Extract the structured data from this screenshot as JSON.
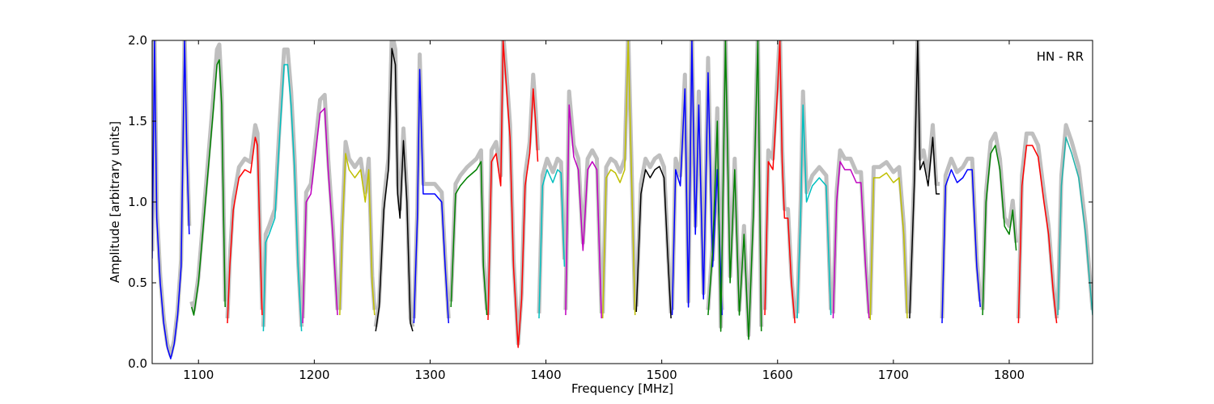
{
  "chart_data": {
    "type": "line",
    "xlabel": "Frequency [MHz]",
    "ylabel": "Amplitude [arbitrary units]",
    "annotation": "HN - RR",
    "xlim": [
      1060,
      1872
    ],
    "ylim": [
      0.0,
      2.0
    ],
    "x_ticks": [
      1100,
      1200,
      1300,
      1400,
      1500,
      1600,
      1700,
      1800
    ],
    "y_ticks": [
      0.0,
      0.5,
      1.0,
      1.5,
      2.0
    ],
    "x_tick_labels": [
      "1100",
      "1200",
      "1300",
      "1400",
      "1500",
      "1600",
      "1700",
      "1800"
    ],
    "y_tick_labels": [
      "0.0",
      "0.5",
      "1.0",
      "1.5",
      "2.0"
    ],
    "grid": false,
    "background_series": {
      "color": "#bfbfbf"
    },
    "series": [
      {
        "color": "#0000ff",
        "x": [
          1060,
          1062,
          1064,
          1067,
          1070,
          1073,
          1076,
          1079,
          1082,
          1085,
          1088,
          1090,
          1092
        ],
        "y": [
          0.65,
          2.0,
          0.9,
          0.5,
          0.25,
          0.1,
          0.03,
          0.12,
          0.3,
          0.6,
          2.0,
          1.3,
          0.8
        ]
      },
      {
        "color": "#008000",
        "x": [
          1094,
          1096,
          1100,
          1106,
          1112,
          1116,
          1118,
          1120,
          1123
        ],
        "y": [
          0.35,
          0.3,
          0.5,
          1.0,
          1.5,
          1.85,
          1.88,
          1.6,
          0.35
        ]
      },
      {
        "color": "#ff0000",
        "x": [
          1125,
          1127,
          1130,
          1135,
          1140,
          1145,
          1149,
          1151,
          1153,
          1155
        ],
        "y": [
          0.25,
          0.6,
          0.95,
          1.15,
          1.2,
          1.18,
          1.4,
          1.35,
          0.8,
          0.3
        ]
      },
      {
        "color": "#00bfbf",
        "x": [
          1156,
          1158,
          1161,
          1166,
          1170,
          1174,
          1177,
          1180,
          1183,
          1186,
          1189
        ],
        "y": [
          0.2,
          0.75,
          0.8,
          0.9,
          1.4,
          1.85,
          1.85,
          1.6,
          1.2,
          0.6,
          0.2
        ]
      },
      {
        "color": "#bf00bf",
        "x": [
          1190,
          1193,
          1197,
          1201,
          1205,
          1209,
          1212,
          1216,
          1220
        ],
        "y": [
          0.25,
          1.0,
          1.05,
          1.3,
          1.55,
          1.58,
          1.2,
          0.8,
          0.3
        ]
      },
      {
        "color": "#bfbf00",
        "x": [
          1222,
          1224,
          1227,
          1230,
          1235,
          1240,
          1244,
          1247,
          1250,
          1252
        ],
        "y": [
          0.3,
          0.8,
          1.3,
          1.2,
          1.15,
          1.2,
          1.0,
          1.2,
          0.5,
          0.3
        ]
      },
      {
        "color": "#000000",
        "x": [
          1253,
          1256,
          1260,
          1264,
          1267,
          1270,
          1272,
          1274,
          1277,
          1280,
          1283,
          1285
        ],
        "y": [
          0.2,
          0.35,
          0.95,
          1.2,
          1.95,
          1.85,
          1.05,
          0.9,
          1.38,
          1.0,
          0.25,
          0.2
        ]
      },
      {
        "color": "#0000ff",
        "x": [
          1286,
          1289,
          1291,
          1294,
          1298,
          1304,
          1310,
          1313,
          1316
        ],
        "y": [
          0.25,
          0.9,
          1.82,
          1.05,
          1.05,
          1.05,
          1.0,
          0.6,
          0.25
        ]
      },
      {
        "color": "#008000",
        "x": [
          1318,
          1322,
          1326,
          1332,
          1340,
          1344,
          1346,
          1349
        ],
        "y": [
          0.35,
          1.05,
          1.1,
          1.15,
          1.2,
          1.25,
          0.6,
          0.3
        ]
      },
      {
        "color": "#ff0000",
        "x": [
          1350,
          1353,
          1357,
          1361,
          1363,
          1366,
          1369,
          1372,
          1376,
          1379,
          1382,
          1386,
          1389,
          1391,
          1393
        ],
        "y": [
          0.27,
          1.25,
          1.3,
          1.1,
          2.0,
          1.7,
          1.4,
          0.6,
          0.1,
          0.4,
          1.1,
          1.3,
          1.7,
          1.5,
          1.25
        ]
      },
      {
        "color": "#00bfbf",
        "x": [
          1394,
          1397,
          1401,
          1406,
          1410,
          1413,
          1416
        ],
        "y": [
          0.28,
          1.1,
          1.2,
          1.12,
          1.2,
          1.18,
          0.6
        ]
      },
      {
        "color": "#bf00bf",
        "x": [
          1417,
          1420,
          1424,
          1428,
          1432,
          1436,
          1440,
          1444,
          1448
        ],
        "y": [
          0.3,
          1.6,
          1.28,
          1.2,
          0.7,
          1.2,
          1.25,
          1.2,
          0.28
        ]
      },
      {
        "color": "#bfbf00",
        "x": [
          1449,
          1452,
          1456,
          1460,
          1464,
          1468,
          1471,
          1474,
          1477
        ],
        "y": [
          0.28,
          1.15,
          1.2,
          1.18,
          1.12,
          1.2,
          2.0,
          1.15,
          0.3
        ]
      },
      {
        "color": "#000000",
        "x": [
          1478,
          1482,
          1486,
          1490,
          1494,
          1498,
          1502,
          1505,
          1508
        ],
        "y": [
          0.32,
          1.05,
          1.2,
          1.15,
          1.2,
          1.22,
          1.15,
          0.7,
          0.28
        ]
      },
      {
        "color": "#0000ff",
        "x": [
          1509,
          1512,
          1516,
          1520,
          1523,
          1526,
          1529,
          1532,
          1536,
          1540,
          1544,
          1548,
          1552
        ],
        "y": [
          0.3,
          1.2,
          1.1,
          1.7,
          0.35,
          2.0,
          0.8,
          1.6,
          0.4,
          1.8,
          0.6,
          1.2,
          0.3
        ]
      },
      {
        "color": "#008000",
        "x": [
          1540,
          1544,
          1548,
          1551,
          1555,
          1559,
          1563,
          1567,
          1571,
          1575,
          1579,
          1583,
          1586
        ],
        "y": [
          0.3,
          0.7,
          1.5,
          0.2,
          2.0,
          0.5,
          1.2,
          0.3,
          0.8,
          0.15,
          0.9,
          2.0,
          0.2
        ]
      },
      {
        "color": "#ff0000",
        "x": [
          1589,
          1592,
          1596,
          1600,
          1602,
          1604,
          1606,
          1609,
          1612,
          1615
        ],
        "y": [
          0.3,
          1.25,
          1.2,
          1.7,
          2.0,
          1.25,
          0.9,
          0.9,
          0.5,
          0.25
        ]
      },
      {
        "color": "#00bfbf",
        "x": [
          1617,
          1620,
          1622,
          1625,
          1630,
          1636,
          1642,
          1646
        ],
        "y": [
          0.28,
          0.95,
          1.6,
          1.0,
          1.1,
          1.15,
          1.1,
          0.3
        ]
      },
      {
        "color": "#bf00bf",
        "x": [
          1648,
          1651,
          1654,
          1658,
          1663,
          1668,
          1672,
          1676,
          1679
        ],
        "y": [
          0.28,
          1.0,
          1.25,
          1.2,
          1.2,
          1.12,
          1.12,
          0.6,
          0.28
        ]
      },
      {
        "color": "#bfbf00",
        "x": [
          1680,
          1683,
          1688,
          1694,
          1700,
          1705,
          1709,
          1712
        ],
        "y": [
          0.27,
          1.15,
          1.15,
          1.18,
          1.12,
          1.15,
          0.8,
          0.28
        ]
      },
      {
        "color": "#000000",
        "x": [
          1714,
          1718,
          1721,
          1723,
          1726,
          1730,
          1734,
          1737,
          1740
        ],
        "y": [
          0.28,
          1.1,
          2.0,
          1.2,
          1.25,
          1.1,
          1.4,
          1.05,
          1.05
        ]
      },
      {
        "color": "#0000ff",
        "x": [
          1742,
          1745,
          1750,
          1755,
          1760,
          1764,
          1768,
          1772,
          1775
        ],
        "y": [
          0.25,
          1.1,
          1.2,
          1.12,
          1.15,
          1.2,
          1.2,
          0.6,
          0.35
        ]
      },
      {
        "color": "#008000",
        "x": [
          1777,
          1780,
          1784,
          1788,
          1792,
          1796,
          1800,
          1803,
          1806
        ],
        "y": [
          0.3,
          1.0,
          1.3,
          1.35,
          1.2,
          0.85,
          0.8,
          0.95,
          0.7
        ]
      },
      {
        "color": "#ff0000",
        "x": [
          1808,
          1811,
          1815,
          1820,
          1825,
          1830,
          1834,
          1838,
          1841
        ],
        "y": [
          0.25,
          1.1,
          1.35,
          1.35,
          1.28,
          1.0,
          0.8,
          0.45,
          0.25
        ]
      },
      {
        "color": "#20b2aa",
        "x": [
          1842,
          1845,
          1849,
          1854,
          1860,
          1866,
          1872
        ],
        "y": [
          0.3,
          1.1,
          1.4,
          1.3,
          1.15,
          0.8,
          0.3
        ]
      }
    ]
  }
}
